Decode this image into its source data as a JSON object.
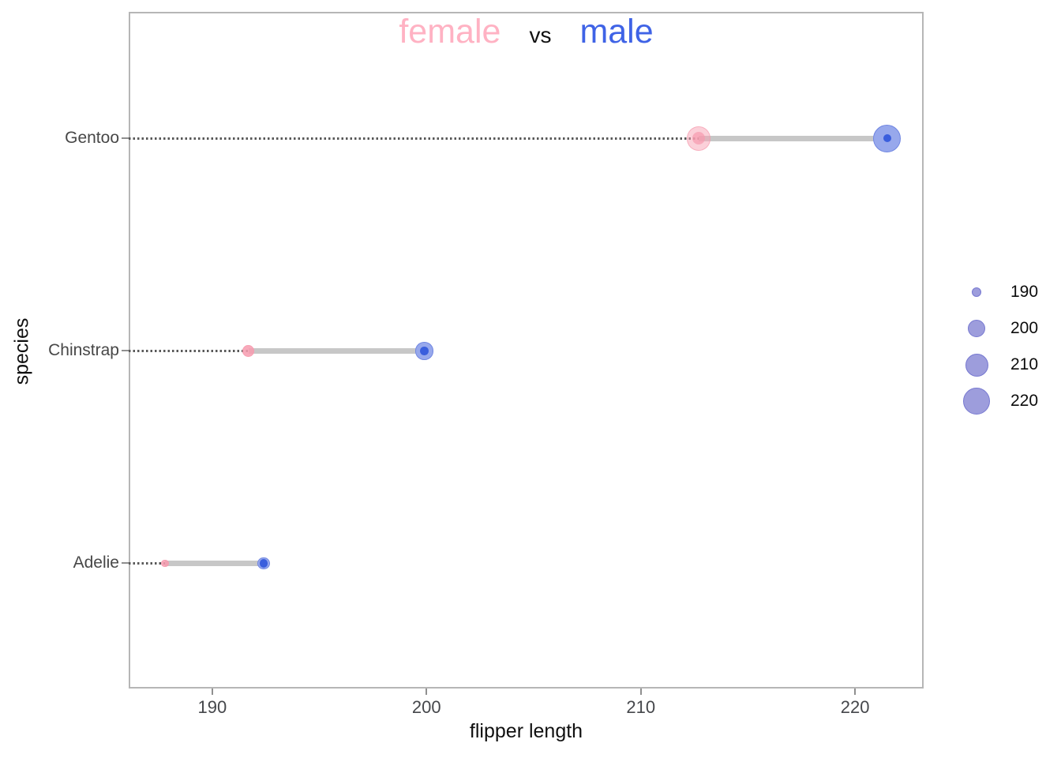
{
  "title": {
    "female": "female",
    "vs": "vs",
    "male": "male"
  },
  "axes": {
    "x_title": "flipper length",
    "y_title": "species"
  },
  "chart_data": {
    "type": "scatter",
    "subtype": "dumbbell",
    "title": "female vs male",
    "xlabel": "flipper length",
    "ylabel": "species",
    "categories": [
      "Gentoo",
      "Chinstrap",
      "Adelie"
    ],
    "series": [
      {
        "name": "female",
        "values": [
          212.7,
          191.7,
          187.8
        ]
      },
      {
        "name": "male",
        "values": [
          221.5,
          199.9,
          192.4
        ]
      }
    ],
    "x_ticks": [
      "190",
      "200",
      "210",
      "220"
    ],
    "xlim": [
      186.1,
      223.2
    ],
    "grid": false,
    "size_encoding": "flipper length",
    "size_legend_labels": [
      "190",
      "200",
      "210",
      "220"
    ],
    "legend_position": "right"
  },
  "colors": {
    "female_accent": "#ffb2c3",
    "male_accent": "#3f63e6",
    "female_point": "#f7a2b4",
    "male_point": "#3a5edd",
    "male_point_fill": "#97a8ec",
    "connector": "#c7c7c7",
    "leader_dots": "#585858",
    "legend_bubble": "#9d9ddc",
    "panel_border": "#b6b6b6",
    "tick_text": "#45474b"
  }
}
